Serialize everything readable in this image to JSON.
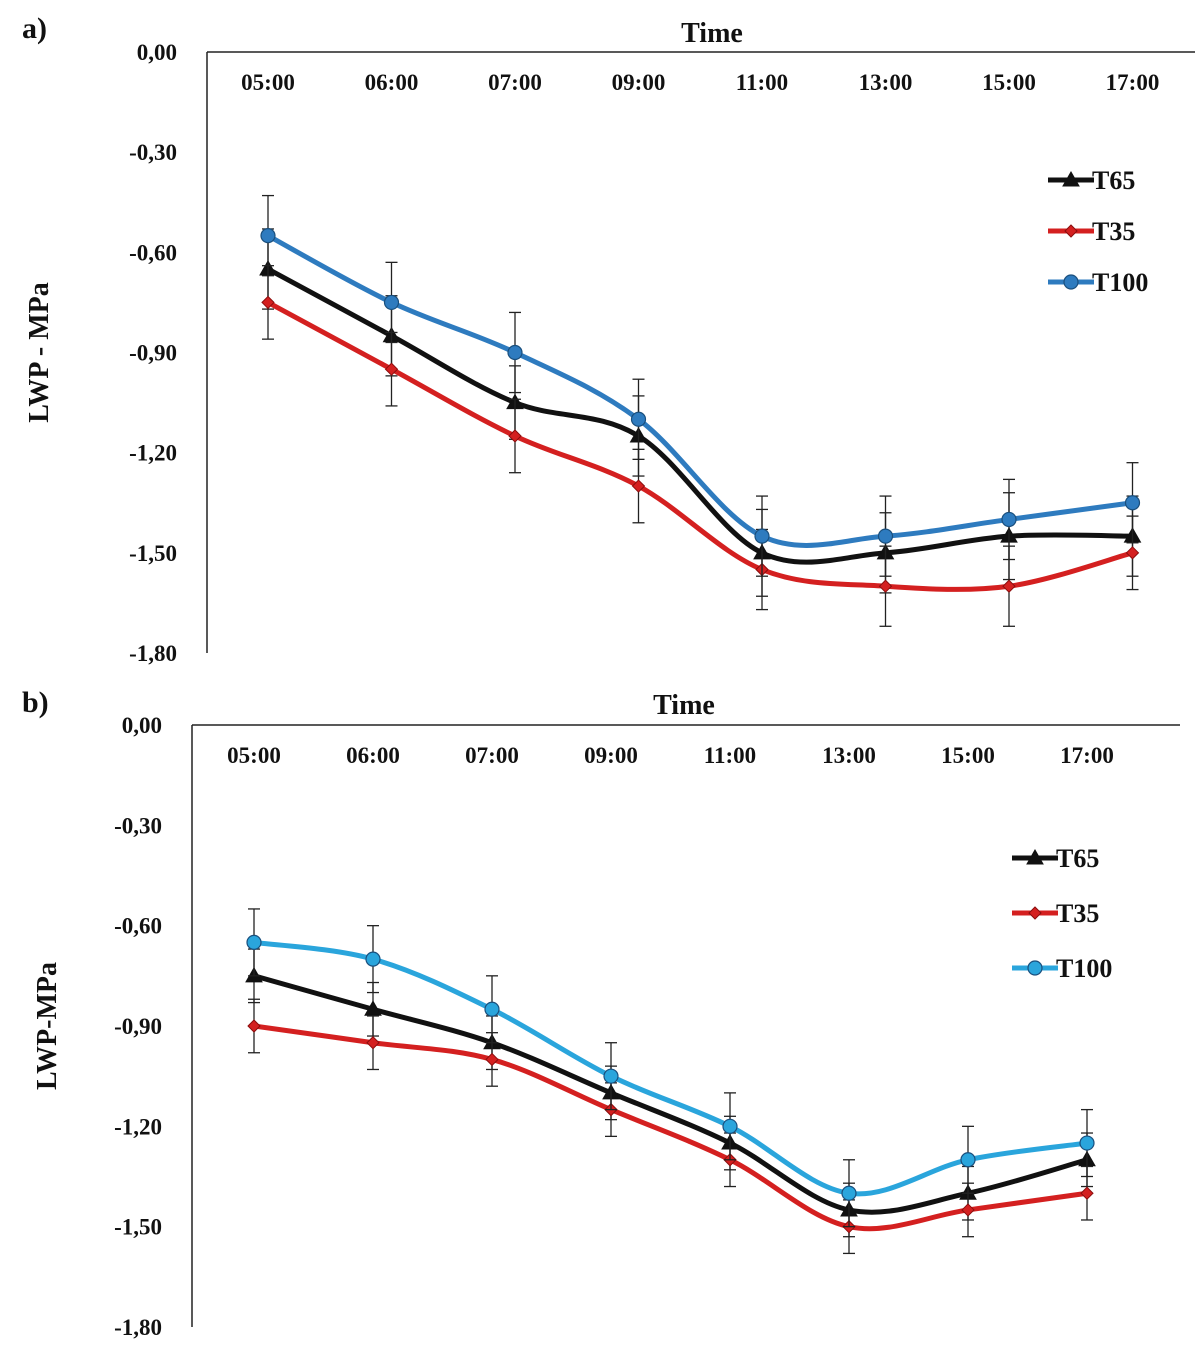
{
  "chart_data": [
    {
      "type": "line",
      "panel_label": "a)",
      "title": "",
      "xlabel": "Time",
      "ylabel": "LWP - MPa",
      "categories": [
        "05:00",
        "06:00",
        "07:00",
        "09:00",
        "11:00",
        "13:00",
        "15:00",
        "17:00"
      ],
      "ylim": [
        -1.8,
        0.0
      ],
      "yticks": [
        "0,00",
        "-0,30",
        "-0,60",
        "-0,90",
        "-1,20",
        "-1,50",
        "-1,80"
      ],
      "x_axis_position": "top",
      "legend_position": "top-right",
      "series": [
        {
          "name": "T65",
          "color": "#111111",
          "marker": "triangle",
          "values": [
            -0.65,
            -0.85,
            -1.05,
            -1.15,
            -1.5,
            -1.5,
            -1.45,
            -1.45
          ],
          "errors": [
            0.12,
            0.12,
            0.11,
            0.12,
            0.13,
            0.12,
            0.13,
            0.12
          ]
        },
        {
          "name": "T35",
          "color": "#d42020",
          "marker": "diamond",
          "values": [
            -0.75,
            -0.95,
            -1.15,
            -1.3,
            -1.55,
            -1.6,
            -1.6,
            -1.5
          ],
          "errors": [
            0.11,
            0.11,
            0.11,
            0.11,
            0.12,
            0.12,
            0.12,
            0.11
          ]
        },
        {
          "name": "T100",
          "color": "#2e7bbf",
          "marker": "circle",
          "values": [
            -0.55,
            -0.75,
            -0.9,
            -1.1,
            -1.45,
            -1.45,
            -1.4,
            -1.35
          ],
          "errors": [
            0.12,
            0.12,
            0.12,
            0.12,
            0.12,
            0.12,
            0.12,
            0.12
          ]
        }
      ]
    },
    {
      "type": "line",
      "panel_label": "b)",
      "title": "",
      "xlabel": "Time",
      "ylabel": "LWP-MPa",
      "categories": [
        "05:00",
        "06:00",
        "07:00",
        "09:00",
        "11:00",
        "13:00",
        "15:00",
        "17:00"
      ],
      "ylim": [
        -1.8,
        0.0
      ],
      "yticks": [
        "0,00",
        "-0,30",
        "-0,60",
        "-0,90",
        "-1,20",
        "-1,50",
        "-1,80"
      ],
      "x_axis_position": "top",
      "legend_position": "top-right",
      "series": [
        {
          "name": "T65",
          "color": "#111111",
          "marker": "triangle",
          "values": [
            -0.75,
            -0.85,
            -0.95,
            -1.1,
            -1.25,
            -1.45,
            -1.4,
            -1.3
          ],
          "errors": [
            0.08,
            0.08,
            0.08,
            0.08,
            0.08,
            0.08,
            0.08,
            0.08
          ]
        },
        {
          "name": "T35",
          "color": "#d42020",
          "marker": "diamond",
          "values": [
            -0.9,
            -0.95,
            -1.0,
            -1.15,
            -1.3,
            -1.5,
            -1.45,
            -1.4
          ],
          "errors": [
            0.08,
            0.08,
            0.08,
            0.08,
            0.08,
            0.08,
            0.08,
            0.08
          ]
        },
        {
          "name": "T100",
          "color": "#2aa5dc",
          "marker": "circle",
          "values": [
            -0.65,
            -0.7,
            -0.85,
            -1.05,
            -1.2,
            -1.4,
            -1.3,
            -1.25
          ],
          "errors": [
            0.1,
            0.1,
            0.1,
            0.1,
            0.1,
            0.1,
            0.1,
            0.1
          ]
        }
      ]
    }
  ]
}
